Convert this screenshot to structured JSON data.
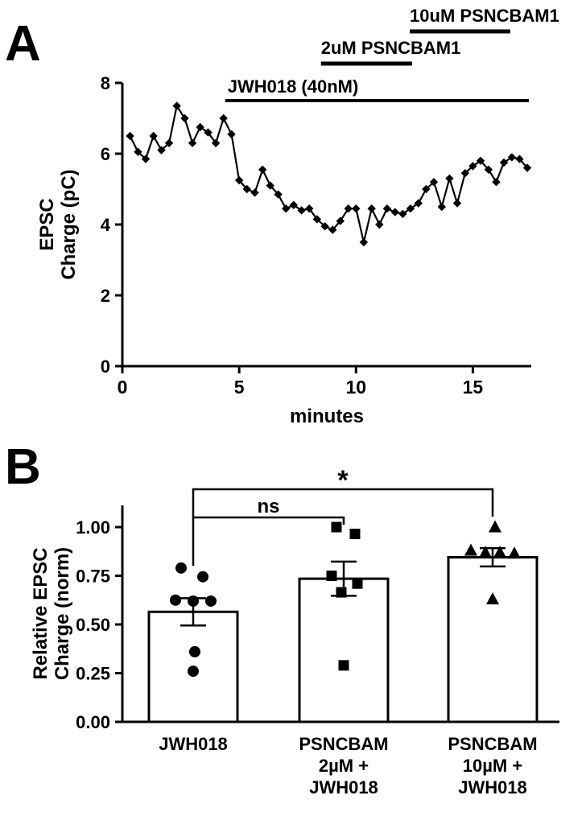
{
  "figure": {
    "background": "#ffffff",
    "ink": "#000000"
  },
  "panels": {
    "a_label": "A",
    "b_label": "B"
  },
  "chart_data": [
    {
      "id": "epsc-timecourse",
      "type": "line",
      "panel": "A",
      "marker": "diamond",
      "xlabel": "minutes",
      "ylabel_lines": [
        "EPSC",
        "Charge (pC)"
      ],
      "xlim": [
        0,
        17.5
      ],
      "ylim": [
        0,
        8
      ],
      "xticks": [
        0,
        5,
        10,
        15
      ],
      "yticks": [
        0,
        2,
        4,
        6,
        8
      ],
      "x": [
        0.33,
        0.67,
        1,
        1.33,
        1.67,
        2,
        2.33,
        2.67,
        3,
        3.33,
        3.67,
        4,
        4.33,
        4.67,
        5,
        5.33,
        5.67,
        6,
        6.33,
        6.67,
        7,
        7.33,
        7.67,
        8,
        8.33,
        8.67,
        9,
        9.33,
        9.67,
        10,
        10.33,
        10.67,
        11,
        11.33,
        11.67,
        12,
        12.33,
        12.67,
        13,
        13.33,
        13.67,
        14,
        14.33,
        14.67,
        15,
        15.33,
        15.67,
        16,
        16.33,
        16.67,
        17,
        17.33
      ],
      "y": [
        6.5,
        6.05,
        5.85,
        6.5,
        6.1,
        6.3,
        7.35,
        7.0,
        6.3,
        6.75,
        6.6,
        6.3,
        7.0,
        6.55,
        5.25,
        5.0,
        4.9,
        5.55,
        5.1,
        4.85,
        4.45,
        4.55,
        4.4,
        4.45,
        4.15,
        3.95,
        3.85,
        4.1,
        4.45,
        4.45,
        3.5,
        4.45,
        4.0,
        4.45,
        4.35,
        4.3,
        4.45,
        4.6,
        5.0,
        5.2,
        4.5,
        5.3,
        4.6,
        5.45,
        5.65,
        5.8,
        5.55,
        5.2,
        5.75,
        5.9,
        5.85,
        5.6
      ],
      "drug_bars": [
        {
          "label": "JWH018 (40nM)",
          "start_min": 4.4,
          "end_min": 17.4,
          "placement": "inplot",
          "y_value": 7.5
        },
        {
          "label": "2uM PSNCBAM1",
          "start_min": 8.5,
          "end_min": 12.4,
          "placement": "above",
          "row": 1
        },
        {
          "label": "10uM PSNCBAM1",
          "start_min": 12.3,
          "end_min": 16.6,
          "placement": "above",
          "row": 2
        }
      ]
    },
    {
      "id": "relative-epsc-bars",
      "type": "bar",
      "panel": "B",
      "ylabel_lines": [
        "Relative EPSC",
        "Charge (norm)"
      ],
      "ylim": [
        0,
        1.12
      ],
      "yticks": [
        0,
        0.25,
        0.5,
        0.75,
        1.0
      ],
      "ytick_labels": [
        "0.00",
        "0.25",
        "0.50",
        "0.75",
        "1.00"
      ],
      "groups": [
        {
          "label_lines": [
            "JWH018"
          ],
          "marker": "circle",
          "mean": 0.565,
          "sem": 0.07,
          "points": [
            [
              -15,
              0.79
            ],
            [
              12,
              0.745
            ],
            [
              -22,
              0.625
            ],
            [
              0,
              0.62
            ],
            [
              22,
              0.62
            ],
            [
              2,
              0.36
            ],
            [
              0,
              0.26
            ]
          ]
        },
        {
          "label_lines": [
            "PSNCBAM",
            "2µM +",
            "JWH018"
          ],
          "marker": "square",
          "mean": 0.735,
          "sem": 0.088,
          "points": [
            [
              -9,
              1.0
            ],
            [
              14,
              0.965
            ],
            [
              -15,
              0.75
            ],
            [
              17,
              0.71
            ],
            [
              -3,
              0.665
            ],
            [
              0,
              0.29
            ]
          ]
        },
        {
          "label_lines": [
            "PSNCBAM",
            "10µM +",
            "JWH018"
          ],
          "marker": "triangle",
          "mean": 0.845,
          "sem": 0.047,
          "points": [
            [
              3,
              1.0
            ],
            [
              -27,
              0.88
            ],
            [
              -9,
              0.87
            ],
            [
              9,
              0.87
            ],
            [
              27,
              0.865
            ],
            [
              0,
              0.63
            ]
          ]
        }
      ],
      "comparisons": [
        {
          "label": "ns",
          "from": 0,
          "to": 1
        },
        {
          "label": "*",
          "from": 0,
          "to": 2
        }
      ]
    }
  ]
}
